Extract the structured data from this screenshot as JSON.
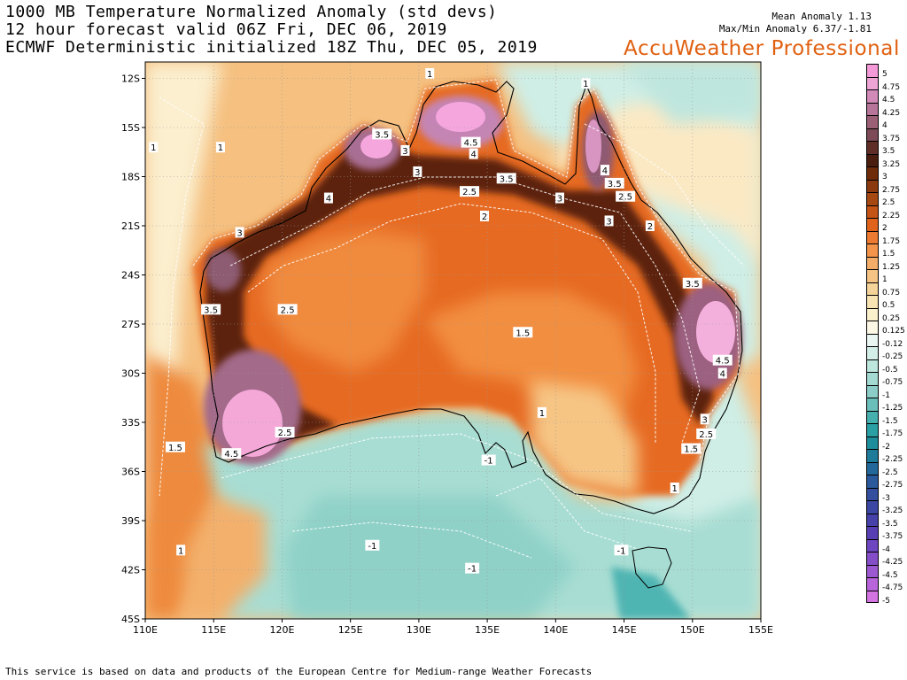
{
  "header": {
    "line1": "1000 MB Temperature Normalized Anomaly (std devs)",
    "line2": "12 hour forecast valid 06Z Fri, DEC 06, 2019",
    "line3": "ECMWF Deterministic initialized 18Z Thu, DEC 05, 2019",
    "mean_anomaly": "Mean Anomaly 1.13",
    "maxmin_anomaly": "Max/Min Anomaly 6.37/-1.81",
    "brand": "AccuWeather Professional"
  },
  "map": {
    "lon_labels": [
      "110E",
      "115E",
      "120E",
      "125E",
      "130E",
      "135E",
      "140E",
      "145E",
      "150E",
      "155E"
    ],
    "lat_labels": [
      "12S",
      "15S",
      "18S",
      "21S",
      "24S",
      "27S",
      "30S",
      "33S",
      "36S",
      "39S",
      "42S",
      "45S"
    ],
    "lon_range": [
      110,
      155
    ],
    "lat_range": [
      -11,
      -45
    ],
    "contour_labels": [
      {
        "text": "1",
        "lon": 130.8,
        "lat": -11.7
      },
      {
        "text": "1",
        "lon": 142.2,
        "lat": -12.3
      },
      {
        "text": "3.5",
        "lon": 127.3,
        "lat": -15.4
      },
      {
        "text": "4.5",
        "lon": 133.8,
        "lat": -15.9
      },
      {
        "text": "1",
        "lon": 110.6,
        "lat": -16.2
      },
      {
        "text": "1",
        "lon": 115.5,
        "lat": -16.2
      },
      {
        "text": "3",
        "lon": 129.0,
        "lat": -16.4
      },
      {
        "text": "4",
        "lon": 134.0,
        "lat": -16.6
      },
      {
        "text": "3",
        "lon": 129.9,
        "lat": -17.7
      },
      {
        "text": "3.5",
        "lon": 136.4,
        "lat": -18.1
      },
      {
        "text": "4",
        "lon": 143.6,
        "lat": -17.6
      },
      {
        "text": "3.5",
        "lon": 144.3,
        "lat": -18.4
      },
      {
        "text": "4",
        "lon": 123.4,
        "lat": -19.3
      },
      {
        "text": "2.5",
        "lon": 133.7,
        "lat": -18.9
      },
      {
        "text": "3",
        "lon": 140.3,
        "lat": -19.3
      },
      {
        "text": "2.5",
        "lon": 145.1,
        "lat": -19.2
      },
      {
        "text": "2",
        "lon": 134.8,
        "lat": -20.4
      },
      {
        "text": "3",
        "lon": 143.9,
        "lat": -20.7
      },
      {
        "text": "2",
        "lon": 146.9,
        "lat": -21.0
      },
      {
        "text": "3",
        "lon": 116.9,
        "lat": -21.4
      },
      {
        "text": "3.5",
        "lon": 150.0,
        "lat": -24.5
      },
      {
        "text": "3.5",
        "lon": 114.8,
        "lat": -26.1
      },
      {
        "text": "2.5",
        "lon": 120.4,
        "lat": -26.1
      },
      {
        "text": "1.5",
        "lon": 137.6,
        "lat": -27.5
      },
      {
        "text": "4.5",
        "lon": 152.2,
        "lat": -29.2
      },
      {
        "text": "4",
        "lon": 152.2,
        "lat": -30.0
      },
      {
        "text": "1",
        "lon": 139.0,
        "lat": -32.4
      },
      {
        "text": "3",
        "lon": 150.9,
        "lat": -32.8
      },
      {
        "text": "2.5",
        "lon": 120.2,
        "lat": -33.6
      },
      {
        "text": "2.5",
        "lon": 151.0,
        "lat": -33.7
      },
      {
        "text": "1.5",
        "lon": 112.2,
        "lat": -34.5
      },
      {
        "text": "1.5",
        "lon": 149.9,
        "lat": -34.6
      },
      {
        "text": "4.5",
        "lon": 116.3,
        "lat": -34.9
      },
      {
        "text": "-1",
        "lon": 135.1,
        "lat": -35.3
      },
      {
        "text": "1",
        "lon": 148.7,
        "lat": -37.0
      },
      {
        "text": "-1",
        "lon": 126.6,
        "lat": -40.5
      },
      {
        "text": "1",
        "lon": 112.6,
        "lat": -40.8
      },
      {
        "text": "-1",
        "lon": 144.8,
        "lat": -40.8
      },
      {
        "text": "-1",
        "lon": 133.9,
        "lat": -41.9
      }
    ]
  },
  "legend": {
    "title": "",
    "items": [
      {
        "label": "5",
        "color": "#f59ad8"
      },
      {
        "label": "4.75",
        "color": "#eea4d4"
      },
      {
        "label": "4.5",
        "color": "#d28ab8"
      },
      {
        "label": "4.25",
        "color": "#b77599"
      },
      {
        "label": "4",
        "color": "#9c6076"
      },
      {
        "label": "3.75",
        "color": "#7d4b57"
      },
      {
        "label": "3.5",
        "color": "#5f2e27"
      },
      {
        "label": "3.25",
        "color": "#4a1f0f"
      },
      {
        "label": "3",
        "color": "#6e2c0a"
      },
      {
        "label": "2.75",
        "color": "#8a3a0e"
      },
      {
        "label": "2.5",
        "color": "#a54812"
      },
      {
        "label": "2.25",
        "color": "#c45516"
      },
      {
        "label": "2",
        "color": "#e0631c"
      },
      {
        "label": "1.75",
        "color": "#ec7a30"
      },
      {
        "label": "1.5",
        "color": "#f2944a"
      },
      {
        "label": "1.25",
        "color": "#f4ad68"
      },
      {
        "label": "1",
        "color": "#f5c384"
      },
      {
        "label": "0.75",
        "color": "#f5d49a"
      },
      {
        "label": "0.5",
        "color": "#f8e3b2"
      },
      {
        "label": "0.25",
        "color": "#fbf0cc"
      },
      {
        "label": "0.125",
        "color": "#fdf8e6"
      },
      {
        "label": "-0.12",
        "color": "#eaf6f2"
      },
      {
        "label": "-0.25",
        "color": "#d4eee8"
      },
      {
        "label": "-0.5",
        "color": "#bde6dd"
      },
      {
        "label": "-0.75",
        "color": "#a4dad2"
      },
      {
        "label": "-1",
        "color": "#8dcdc8"
      },
      {
        "label": "-1.25",
        "color": "#6bbfbb"
      },
      {
        "label": "-1.5",
        "color": "#45b0ae"
      },
      {
        "label": "-1.75",
        "color": "#2aa0a4"
      },
      {
        "label": "-2",
        "color": "#1f8e9c"
      },
      {
        "label": "-2.25",
        "color": "#1e7b9a"
      },
      {
        "label": "-2.5",
        "color": "#23689a"
      },
      {
        "label": "-2.75",
        "color": "#2b5a9c"
      },
      {
        "label": "-3",
        "color": "#334f9e"
      },
      {
        "label": "-3.25",
        "color": "#3b47a2"
      },
      {
        "label": "-3.5",
        "color": "#4741aa"
      },
      {
        "label": "-3.75",
        "color": "#583fb4"
      },
      {
        "label": "-4",
        "color": "#6e46c0"
      },
      {
        "label": "-4.25",
        "color": "#844ec8"
      },
      {
        "label": "-4.5",
        "color": "#9c58d0"
      },
      {
        "label": "-4.75",
        "color": "#b864da"
      },
      {
        "label": "-5",
        "color": "#d474e2"
      }
    ]
  },
  "footer": "This service is based on data and products of the European Centre for Medium-range Weather Forecasts"
}
